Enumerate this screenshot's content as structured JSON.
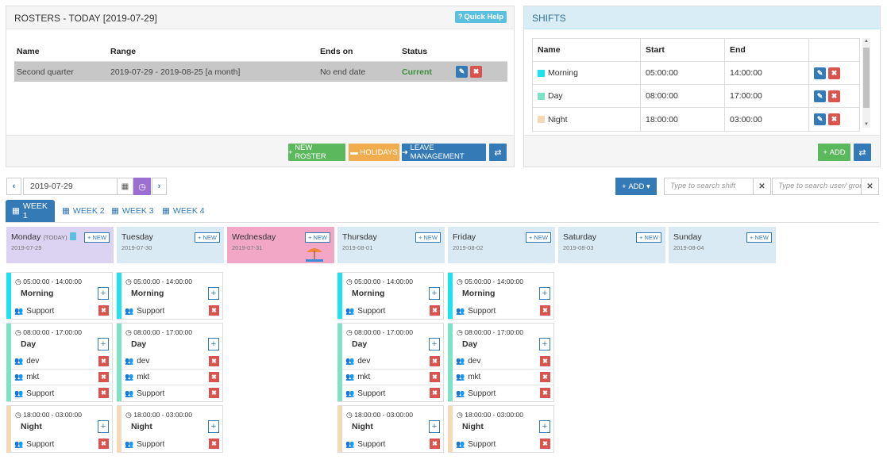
{
  "rosters": {
    "title": "ROSTERS - TODAY [2019-07-29]",
    "quick_help": "Quick Help",
    "columns": [
      "Name",
      "Range",
      "Ends on",
      "Status"
    ],
    "rows": [
      {
        "name": "Second quarter",
        "range": "2019-07-29 - 2019-08-25 [a month]",
        "ends_on": "No end date",
        "status": "Current"
      }
    ],
    "buttons": {
      "new_roster": "NEW ROSTER",
      "holidays": "HOLIDAYS",
      "leave": "LEAVE MANAGEMENT"
    }
  },
  "shifts_panel": {
    "title": "SHIFTS",
    "columns": [
      "Name",
      "Start",
      "End"
    ],
    "rows": [
      {
        "name": "Morning",
        "start": "05:00:00",
        "end": "14:00:00",
        "color": "#1ee3ee"
      },
      {
        "name": "Day",
        "start": "08:00:00",
        "end": "17:00:00",
        "color": "#7ee3c6"
      },
      {
        "name": "Night",
        "start": "18:00:00",
        "end": "03:00:00",
        "color": "#f5d9b6"
      }
    ],
    "add_label": "ADD"
  },
  "toolbar": {
    "date": "2019-07-29",
    "add_label": "ADD",
    "search_shift_placeholder": "Type to search shift",
    "search_user_placeholder": "Type to search user/ group"
  },
  "tabs": [
    "WEEK 1",
    "WEEK 2",
    "WEEK 3",
    "WEEK 4"
  ],
  "days": [
    {
      "name": "Monday",
      "today": "(TODAY)",
      "date": "2019-07-29",
      "bg": "#dcd3f2"
    },
    {
      "name": "Tuesday",
      "date": "2019-07-30",
      "bg": "#d9eaf5"
    },
    {
      "name": "Wednesday",
      "date": "2019-07-31",
      "bg": "#f2a7c6"
    },
    {
      "name": "Thursday",
      "date": "2019-08-01",
      "bg": "#d9eaf5"
    },
    {
      "name": "Friday",
      "date": "2019-08-02",
      "bg": "#d9eaf5"
    },
    {
      "name": "Saturday",
      "date": "2019-08-03",
      "bg": "#d9eaf5"
    },
    {
      "name": "Sunday",
      "date": "2019-08-04",
      "bg": "#d9eaf5"
    }
  ],
  "new_label": "NEW",
  "schedule": {
    "morning": {
      "time": "05:00:00 - 14:00:00",
      "name": "Morning",
      "groups": [
        "Support"
      ]
    },
    "day": {
      "time": "08:00:00 - 17:00:00",
      "name": "Day",
      "groups": [
        "dev",
        "mkt",
        "Support"
      ]
    },
    "night": {
      "time": "18:00:00 - 03:00:00",
      "name": "Night",
      "groups": [
        "Support"
      ]
    }
  }
}
